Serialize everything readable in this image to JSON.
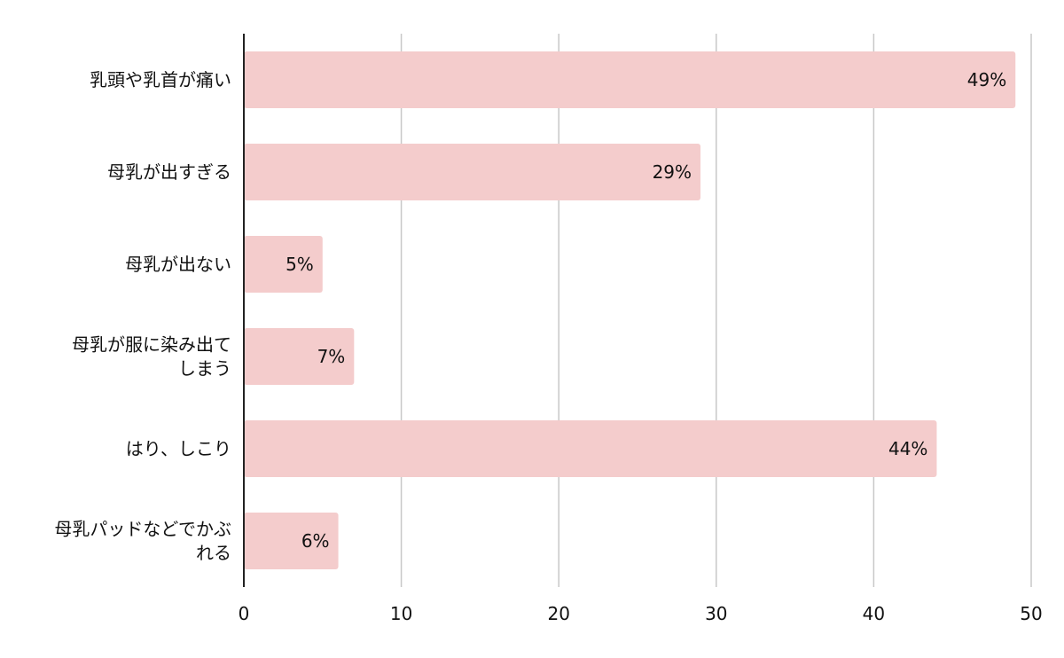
{
  "chart_data": {
    "type": "bar",
    "orientation": "horizontal",
    "categories": [
      [
        "乳頭や乳首が痛い"
      ],
      [
        "母乳が出すぎる"
      ],
      [
        "母乳が出ない"
      ],
      [
        "母乳が服に染み出て",
        "しまう"
      ],
      [
        "はり、しこり"
      ],
      [
        "母乳パッドなどでかぶ",
        "れる"
      ]
    ],
    "values": [
      49,
      29,
      5,
      7,
      44,
      6
    ],
    "data_labels": [
      "49%",
      "29%",
      "5%",
      "7%",
      "44%",
      "6%"
    ],
    "xlim": [
      0,
      50
    ],
    "ticks": [
      0,
      10,
      20,
      30,
      40,
      50
    ],
    "tick_labels": [
      "0",
      "10",
      "20",
      "30",
      "40",
      "50"
    ],
    "title": "",
    "xlabel": "",
    "ylabel": "",
    "grid": true,
    "legend": "none",
    "colors": {
      "bar": "#f4cccc",
      "grid": "#c8c8c8",
      "axis": "#222222",
      "text": "#111111"
    }
  }
}
